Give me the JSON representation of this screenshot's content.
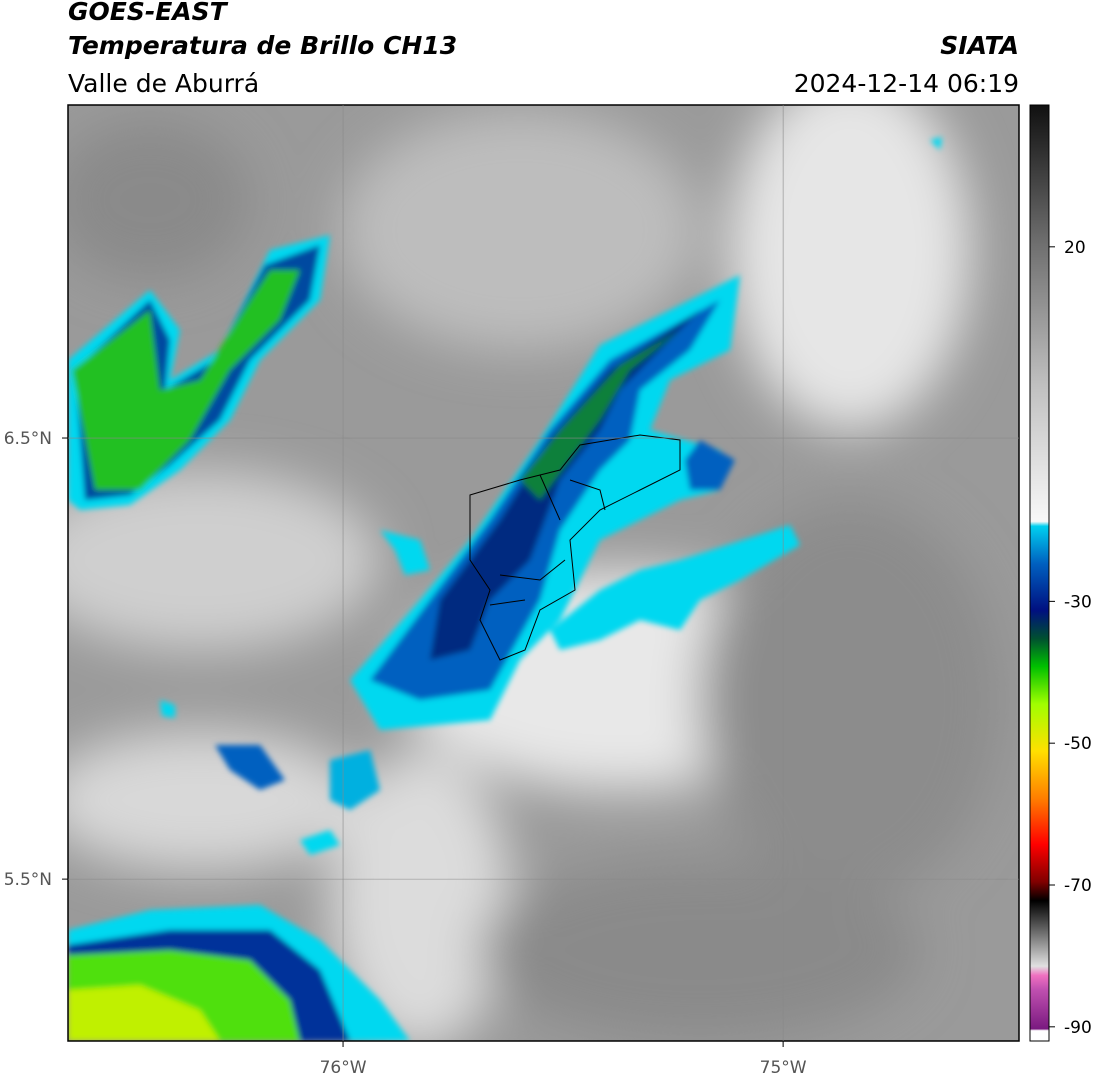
{
  "header": {
    "title": "GOES-EAST",
    "subtitle": "Temperatura de Brillo CH13",
    "region": "Valle de Aburrá",
    "source": "SIATA",
    "datetime": "2024-12-14 06:19"
  },
  "map": {
    "xlim": [
      -76.625,
      -74.464
    ],
    "ylim": [
      5.133,
      7.255
    ],
    "xticks": [
      {
        "value": -76,
        "label": "76°W"
      },
      {
        "value": -75,
        "label": "75°W"
      }
    ],
    "yticks": [
      {
        "value": 6.5,
        "label": "6.5°N"
      },
      {
        "value": 5.5,
        "label": "5.5°N"
      }
    ],
    "grid": true
  },
  "colorbar": {
    "lim": [
      -92,
      40
    ],
    "ticks": [
      20,
      -30,
      -50,
      -70,
      -90
    ]
  }
}
